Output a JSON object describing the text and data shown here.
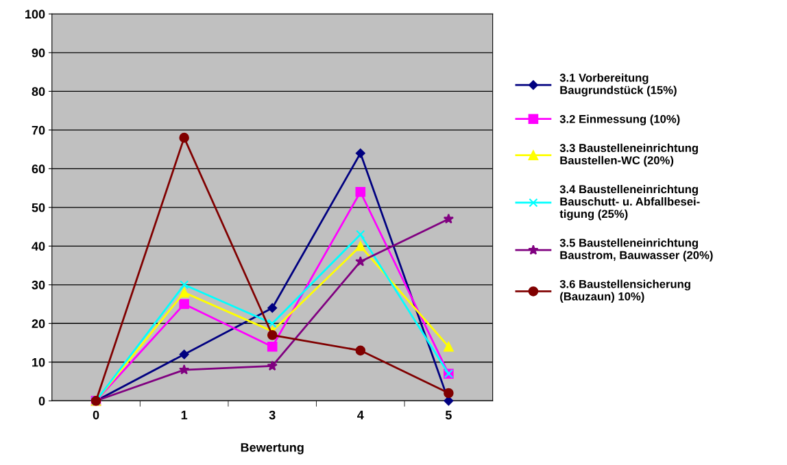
{
  "chart_data": {
    "type": "line",
    "xlabel": "Bewertung",
    "categories": [
      "0",
      "1",
      "3",
      "4",
      "5"
    ],
    "ylim": [
      0,
      100
    ],
    "yticks": [
      0,
      10,
      20,
      30,
      40,
      50,
      60,
      70,
      80,
      90,
      100
    ],
    "grid": "y",
    "legend": "right",
    "series": [
      {
        "name": "3.1 Vorbereitung\nBaugrundstück (15%)",
        "color": "#000080",
        "marker": "diamond",
        "values": [
          0,
          12,
          24,
          64,
          0
        ]
      },
      {
        "name": "3.2 Einmessung (10%)",
        "color": "#ff00ff",
        "marker": "square",
        "values": [
          0,
          25,
          14,
          54,
          7
        ]
      },
      {
        "name": "3.3 Baustelleneinrichtung\nBaustellen-WC (20%)",
        "color": "#ffff00",
        "marker": "triangle",
        "values": [
          0,
          28,
          18,
          40,
          14
        ]
      },
      {
        "name": "3.4 Baustelleneinrichtung\nBauschutt- u. Abfallbesei-\ntigung (25%)",
        "color": "#00ffff",
        "marker": "cross",
        "values": [
          0,
          30,
          20,
          43,
          7
        ]
      },
      {
        "name": "3.5 Baustelleneinrichtung\nBaustrom, Bauwasser (20%)",
        "color": "#800080",
        "marker": "star",
        "values": [
          0,
          8,
          9,
          36,
          47
        ]
      },
      {
        "name": "3.6 Baustellensicherung\n(Bauzaun) 10%)",
        "color": "#800000",
        "marker": "circle",
        "values": [
          0,
          68,
          17,
          13,
          2
        ]
      }
    ]
  }
}
